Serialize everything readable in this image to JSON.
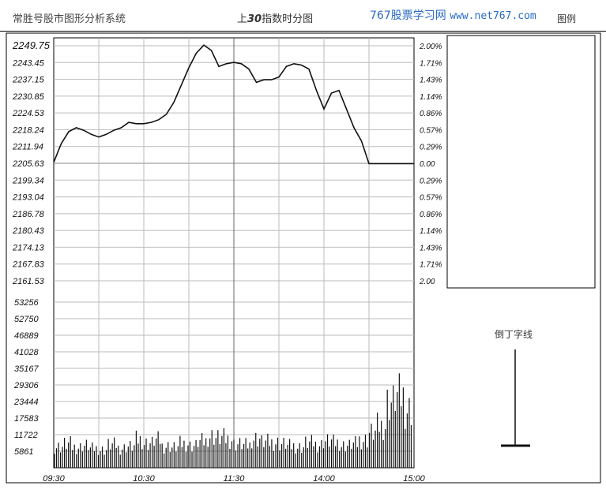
{
  "header": {
    "app_title": "常胜号股市图形分析系统",
    "chart_title_prefix": "上",
    "chart_title_num": "30",
    "chart_title_suffix": "指数时分图",
    "watermark_cn": "767股票学习网",
    "watermark_url": "www.net767.com",
    "extra": "图例"
  },
  "chart_data": {
    "type": "line",
    "title": "上30指数时分图",
    "x_ticks": [
      "09:30",
      "10:30",
      "11:30",
      "14:00",
      "15:00"
    ],
    "price_ticks": [
      "2249.75",
      "2243.45",
      "2237.15",
      "2230.85",
      "2224.53",
      "2218.24",
      "2211.94",
      "2205.63",
      "2199.34",
      "2193.04",
      "2186.78",
      "2180.43",
      "2174.13",
      "2167.83",
      "2161.53"
    ],
    "pct_ticks": [
      "2.00%",
      "1.71%",
      "1.43%",
      "1.14%",
      "0.86%",
      "0.57%",
      "0.29%",
      "0.00",
      "0.29%",
      "0.57%",
      "0.86%",
      "1.14%",
      "1.43%",
      "1.71%",
      "2.00"
    ],
    "volume_ticks": [
      "53256",
      "52750",
      "46889",
      "41028",
      "35167",
      "29306",
      "23444",
      "17583",
      "11722",
      "5861"
    ],
    "ylim_price": [
      2161.53,
      2249.75
    ],
    "ylim_volume": [
      0,
      58617
    ],
    "base_price": 2205.63,
    "series": [
      {
        "time": [
          0,
          5,
          10,
          15,
          20,
          25,
          30,
          35,
          40,
          45,
          50,
          55,
          60,
          65,
          70,
          75,
          80,
          85,
          90,
          95,
          100,
          105,
          110,
          115,
          120,
          125,
          130,
          135,
          140,
          145,
          150,
          155,
          160,
          165,
          170,
          175,
          180,
          185,
          190,
          195,
          200,
          205,
          210,
          215,
          220,
          225,
          230,
          235,
          240
        ],
        "values": [
          2206.0,
          2213.0,
          2217.5,
          2219.0,
          2218.0,
          2216.5,
          2215.5,
          2216.5,
          2218.0,
          2219.0,
          2221.0,
          2220.5,
          2220.5,
          2221.0,
          2222.0,
          2224.0,
          2228.5,
          2235.0,
          2241.5,
          2247.0,
          2250.0,
          2248.0,
          2242.0,
          2243.0,
          2243.5,
          2243.0,
          2241.0,
          2236.0,
          2237.0,
          2237.0,
          2238.0,
          2242.0,
          2243.0,
          2242.5,
          2241.0,
          2233.0,
          2226.0,
          2232.0,
          2233.0,
          2226.0,
          2219.0,
          2214.0,
          2205.5,
          2205.5,
          2205.5,
          2205.5,
          2205.5,
          2205.5,
          2205.5
        ]
      }
    ],
    "volume": [
      9000,
      10200,
      8800,
      9500,
      8200,
      7600,
      9800,
      8400,
      9100,
      12000,
      10500,
      11800,
      9200,
      8700,
      10300,
      9400,
      11200,
      13500,
      12800,
      12200,
      10100,
      9600,
      12500,
      11000,
      10800,
      10200,
      9300,
      8800,
      10600,
      9900,
      11400,
      10700,
      9500,
      10200,
      11900,
      15000,
      17800,
      28000,
      30500,
      25000
    ],
    "legend_candle": "倒丁字线"
  }
}
